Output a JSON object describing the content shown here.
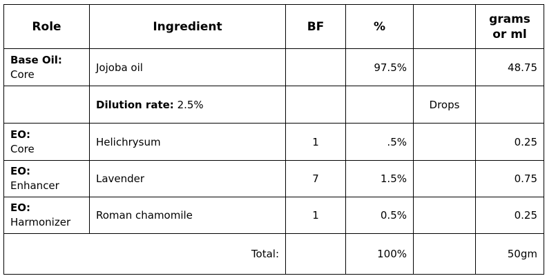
{
  "table": {
    "header": {
      "role": "Role",
      "ingredient": "Ingredient",
      "bf": "BF",
      "percent": "%",
      "grams": [
        "grams",
        "or ml"
      ]
    },
    "rows": [
      {
        "role": {
          "title": "Base Oil:",
          "sub": "Core"
        },
        "ingredient": "Jojoba oil",
        "percent": "97.5%",
        "grams": "48.75"
      },
      {
        "dilution": {
          "label": "Dilution rate:",
          "value": "2.5%"
        },
        "drops": "Drops"
      },
      {
        "role": {
          "title": "EO:",
          "sub": "Core"
        },
        "ingredient": "Helichrysum",
        "bf": "1",
        "percent": ".5%",
        "grams": "0.25"
      },
      {
        "role": {
          "title": "EO:",
          "sub": "Enhancer"
        },
        "ingredient": "Lavender",
        "bf": "7",
        "percent": "1.5%",
        "grams": "0.75"
      },
      {
        "role": {
          "title": "EO:",
          "sub": "Harmonizer"
        },
        "ingredient": "Roman chamomile",
        "bf": "1",
        "percent": "0.5%",
        "grams": "0.25"
      }
    ],
    "total": {
      "label": "Total:",
      "percent": "100%",
      "grams": "50gm"
    }
  }
}
